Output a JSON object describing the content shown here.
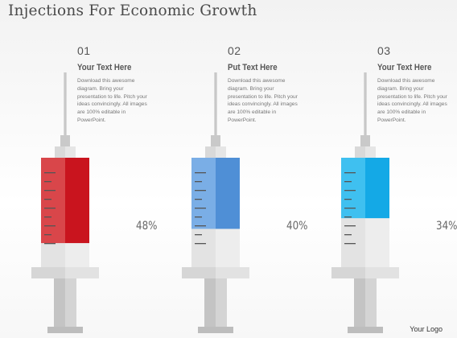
{
  "title": "Injections For Economic Growth",
  "columns": [
    {
      "number": "01",
      "heading": "Your Text Here",
      "description": "Download this awesome diagram. Bring your presentation to life. Pitch your ideas convincingly. All images are 100% editable in PowerPoint.",
      "percent_label": "48%",
      "fill_fraction": 0.48,
      "color": "#c9141e",
      "color_light": "#d9464a"
    },
    {
      "number": "02",
      "heading": "Put Text Here",
      "description": "Download this awesome diagram. Bring your presentation to life. Pitch your ideas convincingly. All images are 100% editable in PowerPoint.",
      "percent_label": "40%",
      "fill_fraction": 0.4,
      "color": "#4f8fd6",
      "color_light": "#7aaee6"
    },
    {
      "number": "03",
      "heading": "Your Text Here",
      "description": "Download this awesome diagram. Bring your presentation to life. Pitch your ideas convincingly. All images are 100% editable in PowerPoint.",
      "percent_label": "34%",
      "fill_fraction": 0.34,
      "color": "#14a9e6",
      "color_light": "#3fc0f0"
    }
  ],
  "logo": "Your Logo"
}
